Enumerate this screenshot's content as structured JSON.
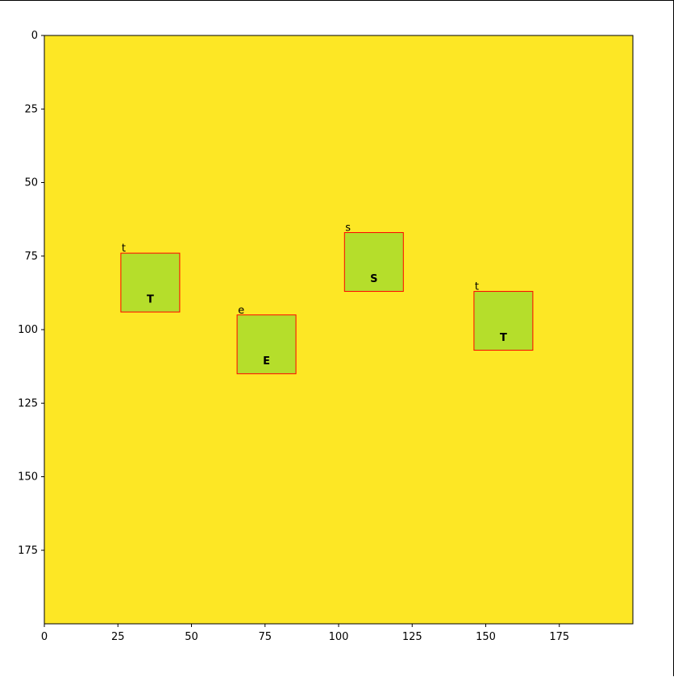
{
  "chart_data": {
    "type": "heatmap",
    "title": "",
    "xlabel": "",
    "ylabel": "",
    "xlim": [
      0,
      200
    ],
    "ylim": [
      200,
      0
    ],
    "x_ticks": [
      0,
      25,
      50,
      75,
      100,
      125,
      150,
      175
    ],
    "y_ticks": [
      0,
      25,
      50,
      75,
      100,
      125,
      150,
      175
    ],
    "background_color": "#fde725",
    "tile_color": "#b5de2b",
    "glyph_color": "#3b3f8f",
    "box_color": "#ff0000",
    "detections": [
      {
        "label": "t",
        "glyph": "T",
        "x": 26,
        "y": 74,
        "width": 20,
        "height": 20
      },
      {
        "label": "e",
        "glyph": "E",
        "x": 65.5,
        "y": 95,
        "width": 20,
        "height": 20
      },
      {
        "label": "s",
        "glyph": "S",
        "x": 102,
        "y": 67,
        "width": 20,
        "height": 20
      },
      {
        "label": "t",
        "glyph": "T",
        "x": 146,
        "y": 87,
        "width": 20,
        "height": 20
      }
    ]
  }
}
